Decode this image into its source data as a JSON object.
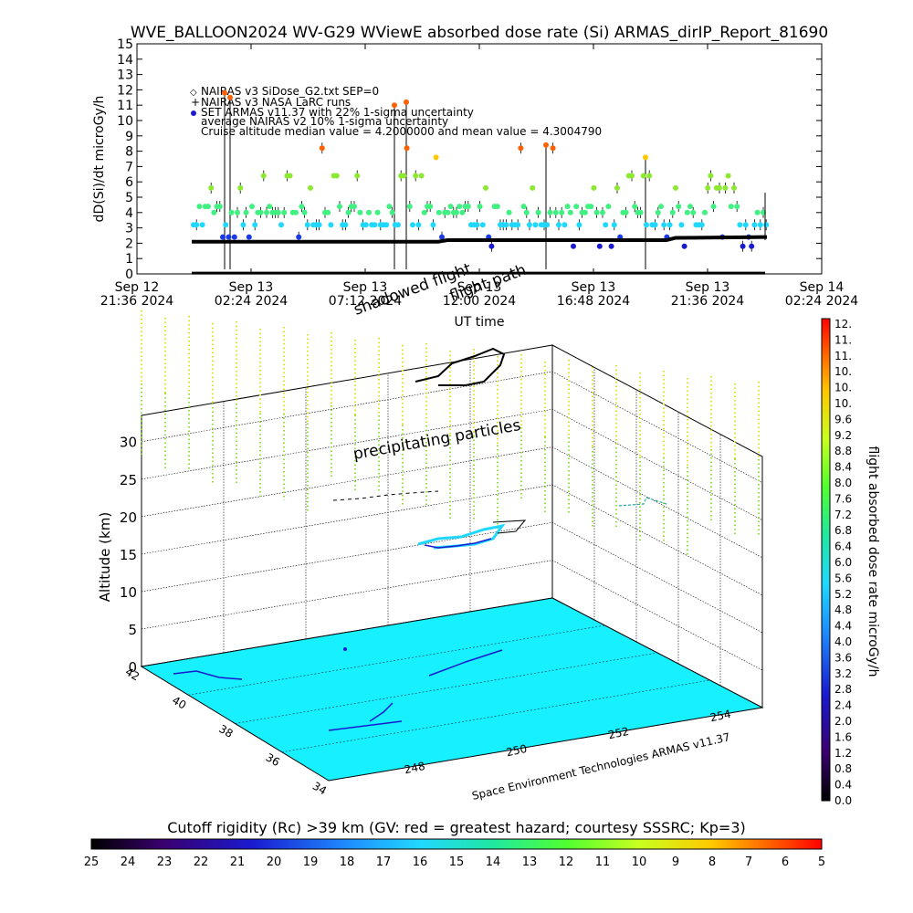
{
  "chart_data": [
    {
      "type": "scatter",
      "title": "WVE_BALLOON2024 WV-G29 WViewE absorbed dose rate (Si) ARMAS_dirIP_Report_81690",
      "ylabel": "dD(Si)/dt microGy/h",
      "xlabel": "UT time",
      "ylim": [
        0,
        15
      ],
      "yticks": [
        "0",
        "1",
        "2",
        "3",
        "4",
        "5",
        "6",
        "7",
        "8",
        "9",
        "10",
        "11",
        "12",
        "13",
        "14",
        "15"
      ],
      "xticks": [
        {
          "l1": "Sep 12",
          "l2": "21:36 2024"
        },
        {
          "l1": "Sep 13",
          "l2": "02:24 2024"
        },
        {
          "l1": "Sep 13",
          "l2": "07:12 2024"
        },
        {
          "l1": "Sep 13",
          "l2": "12:00 2024"
        },
        {
          "l1": "Sep 13",
          "l2": "16:48 2024"
        },
        {
          "l1": "Sep 13",
          "l2": "21:36 2024"
        },
        {
          "l1": "Sep 14",
          "l2": "02:24 2024"
        }
      ],
      "legend": [
        "NAIRAS v3 SiDose_G2.txt SEP=0",
        "NAIRAS v3 NASA LaRC runs",
        "SET ARMAS v11.37 with 22% 1-sigma uncertainty",
        "average NAIRAS v2 10% 1-sigma uncertainty",
        "Cruise altitude median value = 4.2000000 and mean value = 4.3004790"
      ],
      "legend_placement": "top-left",
      "series": [
        {
          "name": "SET ARMAS v11.37 with 22% 1-sigma uncertainty",
          "levels": [
            1.8,
            2.4,
            3.2,
            4.0,
            4.2,
            4.4,
            5.0,
            6.0,
            6.6,
            7.6,
            8.2
          ]
        },
        {
          "name": "NAIRAS v3 NASA LaRC runs",
          "start": 2.1,
          "mid": 2.2,
          "end": 2.4
        }
      ],
      "ymedian": 4.2,
      "ymean": 4.300479
    },
    {
      "type": "scatter3d",
      "ylabel": "Altitude (km)",
      "zticks": [
        "0",
        "5",
        "10",
        "15",
        "20",
        "25",
        "30"
      ],
      "lat_ticks": [
        "42",
        "40",
        "38",
        "36",
        "34"
      ],
      "lon_ticks": [
        "248",
        "250",
        "252",
        "254"
      ],
      "annotations": [
        "shadowed flight",
        "flight path",
        "precipitating particles"
      ],
      "credit": "Space Environment Technologies ARMAS v11.37"
    }
  ],
  "colorbar_right": {
    "label": "flight absorbed dose rate microGy/h",
    "ticks": [
      "12.",
      "11.",
      "11.",
      "10.",
      "10.",
      "10.",
      "9.6",
      "9.2",
      "8.8",
      "8.4",
      "8.0",
      "7.6",
      "7.2",
      "6.8",
      "6.4",
      "6.0",
      "5.6",
      "5.2",
      "4.8",
      "4.4",
      "4.0",
      "3.6",
      "3.2",
      "2.8",
      "2.4",
      "2.0",
      "1.6",
      "1.2",
      "0.8",
      "0.4",
      "0.0"
    ]
  },
  "colorbar_bottom": {
    "label": "Cutoff rigidity (Rc) >39 km (GV: red = greatest hazard; courtesy SSSRC; Kp=3)",
    "ticks": [
      "25",
      "24",
      "23",
      "22",
      "21",
      "20",
      "19",
      "18",
      "17",
      "16",
      "15",
      "14",
      "13",
      "12",
      "11",
      "10",
      "9",
      "8",
      "7",
      "6",
      "5"
    ]
  }
}
